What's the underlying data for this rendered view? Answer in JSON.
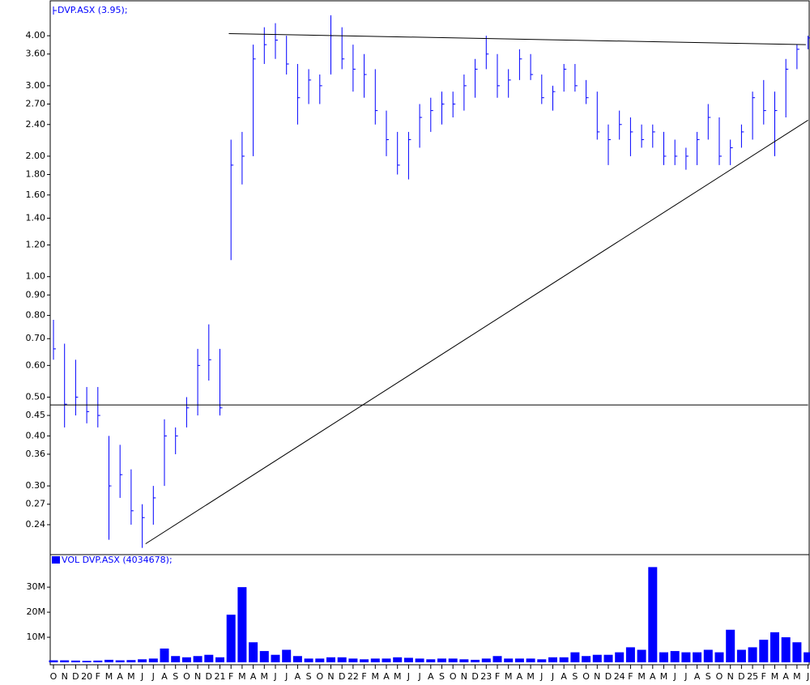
{
  "chart_data": [
    {
      "type": "ohlc",
      "title": "DVP.ASX (3.95);",
      "log_scale": true,
      "color": "#0000ff",
      "trendline_color": "#000000",
      "categories": [
        "O",
        "N",
        "D",
        "20",
        "F",
        "M",
        "A",
        "M",
        "J",
        "J",
        "A",
        "S",
        "O",
        "N",
        "D",
        "21",
        "F",
        "M",
        "A",
        "M",
        "J",
        "J",
        "A",
        "S",
        "O",
        "N",
        "D",
        "22",
        "F",
        "M",
        "A",
        "M",
        "J",
        "J",
        "A",
        "S",
        "O",
        "N",
        "D",
        "23",
        "F",
        "M",
        "A",
        "M",
        "J",
        "J",
        "A",
        "S",
        "O",
        "N",
        "D",
        "24",
        "F",
        "M",
        "A",
        "M",
        "J",
        "J",
        "A",
        "S",
        "O",
        "N",
        "D",
        "25",
        "F",
        "M",
        "A",
        "M",
        "J"
      ],
      "high": [
        0.78,
        0.68,
        0.62,
        0.53,
        0.53,
        0.4,
        0.38,
        0.33,
        0.27,
        0.3,
        0.44,
        0.42,
        0.5,
        0.66,
        0.76,
        0.66,
        2.2,
        2.3,
        3.8,
        4.2,
        4.3,
        4.0,
        3.4,
        3.3,
        3.2,
        4.5,
        4.2,
        3.8,
        3.6,
        3.3,
        2.6,
        2.3,
        2.3,
        2.7,
        2.8,
        2.9,
        2.9,
        3.2,
        3.5,
        4.0,
        3.6,
        3.3,
        3.7,
        3.6,
        3.2,
        3.0,
        3.4,
        3.4,
        3.1,
        2.9,
        2.4,
        2.6,
        2.5,
        2.4,
        2.4,
        2.3,
        2.2,
        2.1,
        2.3,
        2.7,
        2.5,
        2.2,
        2.4,
        2.9,
        3.1,
        2.9,
        3.5,
        3.8,
        4.0
      ],
      "low": [
        0.62,
        0.42,
        0.45,
        0.43,
        0.42,
        0.22,
        0.28,
        0.24,
        0.21,
        0.24,
        0.3,
        0.36,
        0.42,
        0.45,
        0.55,
        0.45,
        1.1,
        1.7,
        2.0,
        3.4,
        3.5,
        3.2,
        2.4,
        2.7,
        2.7,
        3.2,
        3.3,
        2.9,
        2.8,
        2.4,
        2.0,
        1.8,
        1.75,
        2.1,
        2.3,
        2.4,
        2.5,
        2.6,
        2.8,
        3.3,
        2.8,
        2.8,
        3.1,
        3.1,
        2.7,
        2.6,
        2.9,
        2.9,
        2.7,
        2.2,
        1.9,
        2.2,
        2.0,
        2.1,
        2.1,
        1.9,
        1.9,
        1.85,
        1.9,
        2.2,
        1.9,
        1.9,
        2.1,
        2.2,
        2.4,
        2.0,
        2.5,
        3.3,
        3.7
      ],
      "close": [
        0.66,
        0.48,
        0.5,
        0.46,
        0.45,
        0.3,
        0.32,
        0.26,
        0.25,
        0.28,
        0.4,
        0.4,
        0.47,
        0.6,
        0.62,
        0.47,
        1.9,
        2.0,
        3.5,
        3.8,
        3.9,
        3.4,
        2.8,
        3.1,
        3.0,
        4.0,
        3.5,
        3.3,
        3.2,
        2.6,
        2.2,
        1.9,
        2.2,
        2.5,
        2.6,
        2.7,
        2.7,
        3.0,
        3.3,
        3.6,
        3.0,
        3.1,
        3.5,
        3.2,
        2.8,
        2.9,
        3.3,
        3.0,
        2.8,
        2.3,
        2.2,
        2.4,
        2.3,
        2.2,
        2.3,
        2.0,
        2.0,
        2.0,
        2.2,
        2.5,
        2.0,
        2.1,
        2.3,
        2.8,
        2.6,
        2.6,
        3.3,
        3.7,
        3.95
      ],
      "ylim": [
        0.202,
        4.8
      ],
      "yticks": [
        {
          "value": 0.24,
          "label": "0.24"
        },
        {
          "value": 0.27,
          "label": "0.27"
        },
        {
          "value": 0.3,
          "label": "0.30"
        },
        {
          "value": 0.36,
          "label": "0.36"
        },
        {
          "value": 0.4,
          "label": "0.40"
        },
        {
          "value": 0.45,
          "label": "0.45"
        },
        {
          "value": 0.5,
          "label": "0.50"
        },
        {
          "value": 0.6,
          "label": "0.60"
        },
        {
          "value": 0.7,
          "label": "0.70"
        },
        {
          "value": 0.8,
          "label": "0.80"
        },
        {
          "value": 0.9,
          "label": "0.90"
        },
        {
          "value": 1,
          "label": "1.00"
        },
        {
          "value": 1.2,
          "label": "1.20"
        },
        {
          "value": 1.4,
          "label": "1.40"
        },
        {
          "value": 1.6,
          "label": "1.60"
        },
        {
          "value": 1.8,
          "label": "1.80"
        },
        {
          "value": 2,
          "label": "2.00"
        },
        {
          "value": 2.4,
          "label": "2.40"
        },
        {
          "value": 2.7,
          "label": "2.70"
        },
        {
          "value": 3,
          "label": "3.00"
        },
        {
          "value": 3.6,
          "label": "3.60"
        },
        {
          "value": 4,
          "label": "4.00"
        }
      ],
      "trendlines": [
        {
          "x": [
            -0.3,
            68.0
          ],
          "values": [
            0.478,
            0.478
          ]
        },
        {
          "x": [
            15.8,
            67.8
          ],
          "values": [
            4.05,
            3.8
          ]
        },
        {
          "x": [
            8.3,
            68.0
          ],
          "values": [
            0.215,
            2.46
          ]
        }
      ]
    },
    {
      "type": "bar",
      "title": "VOL DVP.ASX (4034678);",
      "color": "#0000ff",
      "values": [
        800000,
        800000,
        700000,
        600000,
        700000,
        1000000,
        800000,
        900000,
        1200000,
        1500000,
        5500000,
        2500000,
        2000000,
        2500000,
        3000000,
        2000000,
        19000000,
        30000000,
        8000000,
        4500000,
        3000000,
        5000000,
        2500000,
        1500000,
        1500000,
        2000000,
        2000000,
        1500000,
        1200000,
        1500000,
        1500000,
        2000000,
        1800000,
        1500000,
        1200000,
        1500000,
        1500000,
        1200000,
        1000000,
        1500000,
        2500000,
        1500000,
        1500000,
        1500000,
        1200000,
        2000000,
        2000000,
        4000000,
        2500000,
        3000000,
        3000000,
        4000000,
        6000000,
        5000000,
        38000000,
        4000000,
        4500000,
        4000000,
        4000000,
        5000000,
        4000000,
        13000000,
        5000000,
        6000000,
        9000000,
        12000000,
        10000000,
        8000000,
        4000000
      ],
      "ylim": [
        0,
        42000000
      ],
      "yticks": [
        {
          "value": 10000000,
          "label": "10M"
        },
        {
          "value": 20000000,
          "label": "20M"
        },
        {
          "value": 30000000,
          "label": "30M"
        }
      ]
    }
  ]
}
